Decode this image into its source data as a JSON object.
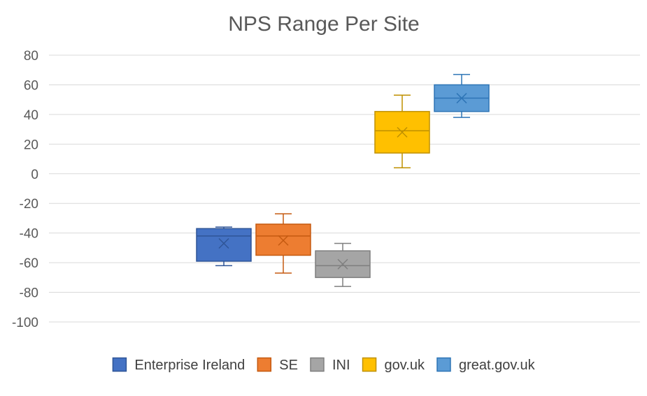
{
  "chart_data": {
    "type": "box",
    "title": "NPS Range Per Site",
    "xlabel": "",
    "ylabel": "",
    "ylim": [
      -100,
      80
    ],
    "y_ticks": [
      80,
      60,
      40,
      20,
      0,
      -20,
      -40,
      -60,
      -80,
      -100
    ],
    "grid": true,
    "legend_position": "bottom",
    "series": [
      {
        "name": "Enterprise Ireland",
        "color": "#4472c4",
        "stroke": "#2f5597",
        "min": -62,
        "q1": -59,
        "median": -42,
        "q3": -37,
        "max": -36,
        "mean": -47
      },
      {
        "name": "SE",
        "color": "#ed7d31",
        "stroke": "#c55a11",
        "min": -67,
        "q1": -55,
        "median": -42,
        "q3": -34,
        "max": -27,
        "mean": -45
      },
      {
        "name": "INI",
        "color": "#a5a5a5",
        "stroke": "#7f7f7f",
        "min": -76,
        "q1": -70,
        "median": -62,
        "q3": -52,
        "max": -47,
        "mean": -61
      },
      {
        "name": "gov.uk",
        "color": "#ffc000",
        "stroke": "#bf9000",
        "min": 4,
        "q1": 14,
        "median": 29,
        "q3": 42,
        "max": 53,
        "mean": 28
      },
      {
        "name": "great.gov.uk",
        "color": "#5b9bd5",
        "stroke": "#2e75b6",
        "min": 38,
        "q1": 42,
        "median": 51,
        "q3": 60,
        "max": 67,
        "mean": 51
      }
    ]
  }
}
